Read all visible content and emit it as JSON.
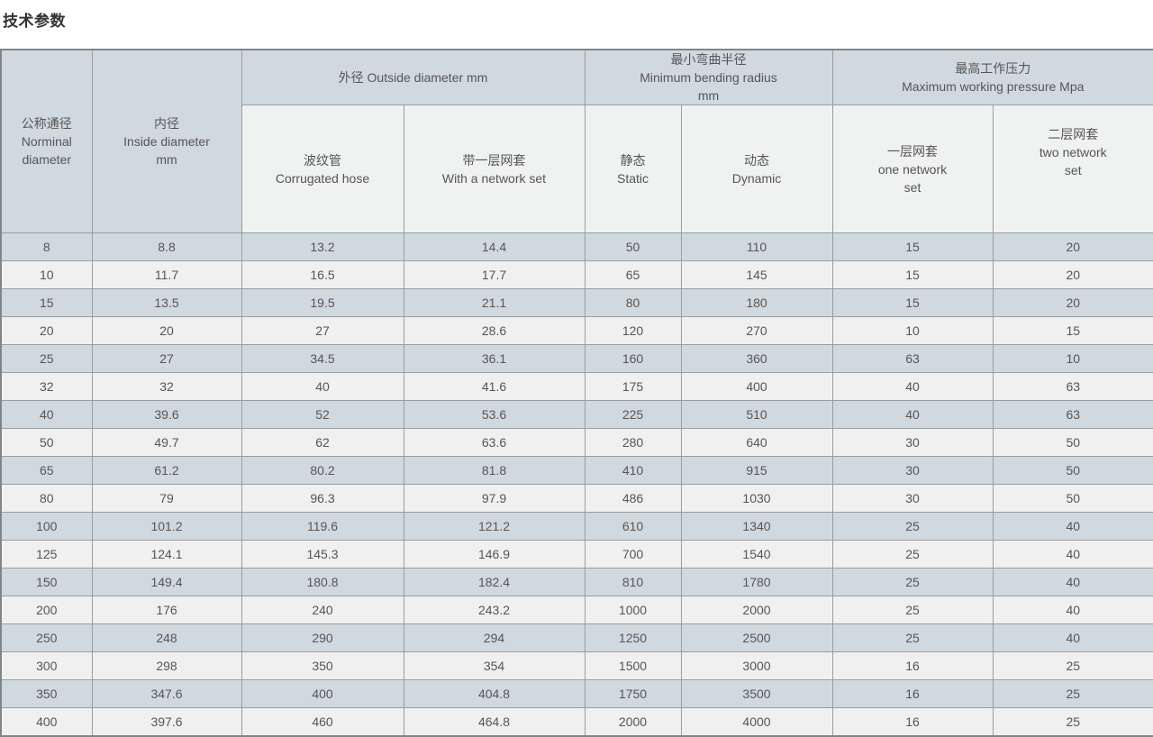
{
  "title": "技术参数",
  "colors": {
    "header_bg": "#d1d9e0",
    "subheader_bg": "#f0f1f1",
    "row_odd_bg": "#d1d9e0",
    "row_even_bg": "#f0f0f0",
    "border": "#979da2",
    "outer_border": "#7f868b",
    "text": "#555555",
    "title_text": "#333333"
  },
  "table": {
    "headers": {
      "nominal": "公称通径\nNorminal\ndiameter",
      "inside": "内径\nInside diameter\nmm",
      "outside_group": "外径 Outside diameter mm",
      "corrugated": "波纹管\nCorrugated hose",
      "with_network": "带一层网套\nWith a network set",
      "bending_group": "最小弯曲半径\nMinimum bending radius\nmm",
      "static": "静态\nStatic",
      "dynamic": "动态\nDynamic",
      "pressure_group": "最高工作压力\nMaximum working pressure Mpa",
      "one_network": "一层网套\none network\nset",
      "two_network": "二层网套\ntwo network\nset"
    },
    "rows": [
      [
        "8",
        "8.8",
        "13.2",
        "14.4",
        "50",
        "110",
        "15",
        "20"
      ],
      [
        "10",
        "11.7",
        "16.5",
        "17.7",
        "65",
        "145",
        "15",
        "20"
      ],
      [
        "15",
        "13.5",
        "19.5",
        "21.1",
        "80",
        "180",
        "15",
        "20"
      ],
      [
        "20",
        "20",
        "27",
        "28.6",
        "120",
        "270",
        "10",
        "15"
      ],
      [
        "25",
        "27",
        "34.5",
        "36.1",
        "160",
        "360",
        "63",
        "10"
      ],
      [
        "32",
        "32",
        "40",
        "41.6",
        "175",
        "400",
        "40",
        "63"
      ],
      [
        "40",
        "39.6",
        "52",
        "53.6",
        "225",
        "510",
        "40",
        "63"
      ],
      [
        "50",
        "49.7",
        "62",
        "63.6",
        "280",
        "640",
        "30",
        "50"
      ],
      [
        "65",
        "61.2",
        "80.2",
        "81.8",
        "410",
        "915",
        "30",
        "50"
      ],
      [
        "80",
        "79",
        "96.3",
        "97.9",
        "486",
        "1030",
        "30",
        "50"
      ],
      [
        "100",
        "101.2",
        "119.6",
        "121.2",
        "610",
        "1340",
        "25",
        "40"
      ],
      [
        "125",
        "124.1",
        "145.3",
        "146.9",
        "700",
        "1540",
        "25",
        "40"
      ],
      [
        "150",
        "149.4",
        "180.8",
        "182.4",
        "810",
        "1780",
        "25",
        "40"
      ],
      [
        "200",
        "176",
        "240",
        "243.2",
        "1000",
        "2000",
        "25",
        "40"
      ],
      [
        "250",
        "248",
        "290",
        "294",
        "1250",
        "2500",
        "25",
        "40"
      ],
      [
        "300",
        "298",
        "350",
        "354",
        "1500",
        "3000",
        "16",
        "25"
      ],
      [
        "350",
        "347.6",
        "400",
        "404.8",
        "1750",
        "3500",
        "16",
        "25"
      ],
      [
        "400",
        "397.6",
        "460",
        "464.8",
        "2000",
        "4000",
        "16",
        "25"
      ]
    ]
  }
}
